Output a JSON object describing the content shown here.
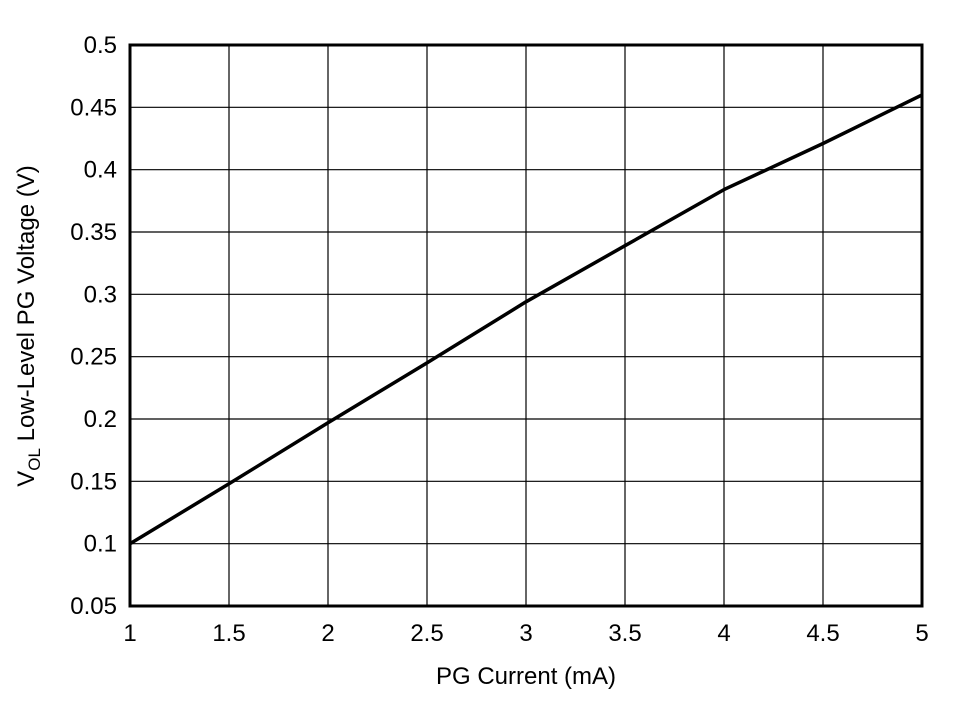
{
  "chart_data": {
    "type": "line",
    "title": "",
    "xlabel": "PG Current (mA)",
    "ylabel_main": "V",
    "ylabel_sub": "OL",
    "ylabel_rest": " Low-Level PG Voltage (V)",
    "xlim": [
      1,
      5
    ],
    "ylim": [
      0.05,
      0.5
    ],
    "xticks": [
      "1",
      "1.5",
      "2",
      "2.5",
      "3",
      "3.5",
      "4",
      "4.5",
      "5"
    ],
    "yticks": [
      "0.05",
      "0.1",
      "0.15",
      "0.2",
      "0.25",
      "0.3",
      "0.35",
      "0.4",
      "0.45",
      "0.5"
    ],
    "grid": true,
    "line_color": "#000000",
    "series": [
      {
        "x": [
          1,
          1.5,
          2,
          2.5,
          3,
          3.5,
          4,
          4.5,
          5
        ],
        "y": [
          0.1,
          0.148,
          0.197,
          0.245,
          0.294,
          0.339,
          0.384,
          0.421,
          0.46
        ]
      }
    ]
  }
}
